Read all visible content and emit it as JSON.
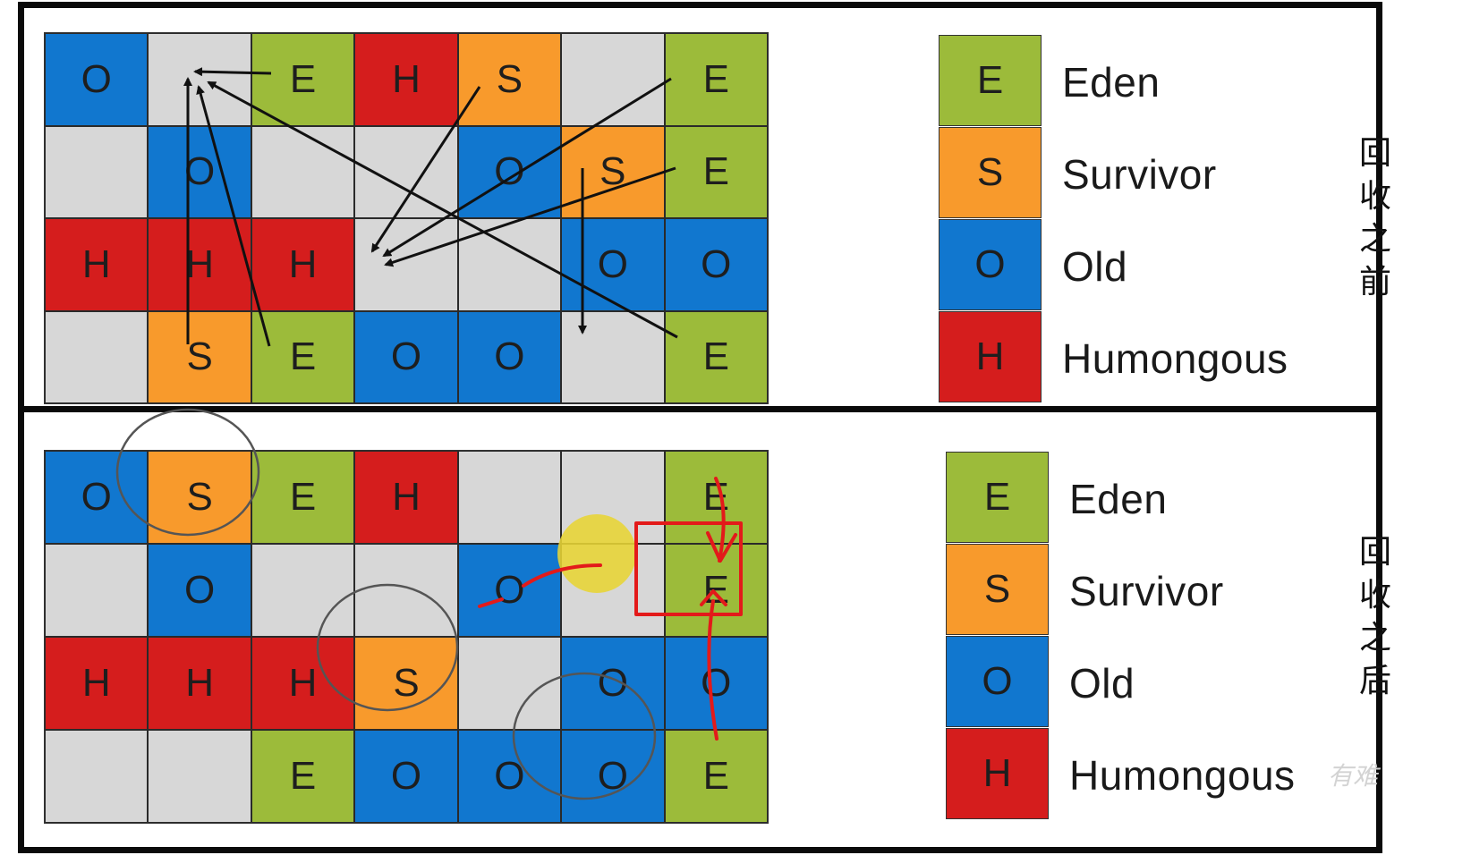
{
  "before": {
    "side_label": "回收之前",
    "grid": [
      [
        "O",
        "",
        "E",
        "H",
        "S",
        "",
        "E"
      ],
      [
        "",
        "O",
        "",
        "",
        "O",
        "S",
        "E"
      ],
      [
        "H",
        "H",
        "H",
        "",
        "",
        "O",
        "O"
      ],
      [
        "",
        "S",
        "E",
        "O",
        "O",
        "",
        "E"
      ]
    ]
  },
  "after": {
    "side_label": "回收之后",
    "grid": [
      [
        "O",
        "S",
        "E",
        "H",
        "",
        "",
        "E"
      ],
      [
        "",
        "O",
        "",
        "",
        "O",
        "",
        "E"
      ],
      [
        "H",
        "H",
        "H",
        "S",
        "",
        "O",
        "O"
      ],
      [
        "",
        "",
        "E",
        "O",
        "O",
        "O",
        "E"
      ]
    ]
  },
  "legend": [
    {
      "letter": "E",
      "name": "Eden"
    },
    {
      "letter": "S",
      "name": "Survivor"
    },
    {
      "letter": "O",
      "name": "Old"
    },
    {
      "letter": "H",
      "name": "Humongous"
    }
  ],
  "colors": {
    "E": "#9cbb3a",
    "S": "#f89a2c",
    "O": "#1177cf",
    "H": "#d51d1d",
    "empty": "#d7d7d7",
    "annotation": "#e31a1a",
    "highlight": "#e8d534"
  },
  "watermark": "有难"
}
